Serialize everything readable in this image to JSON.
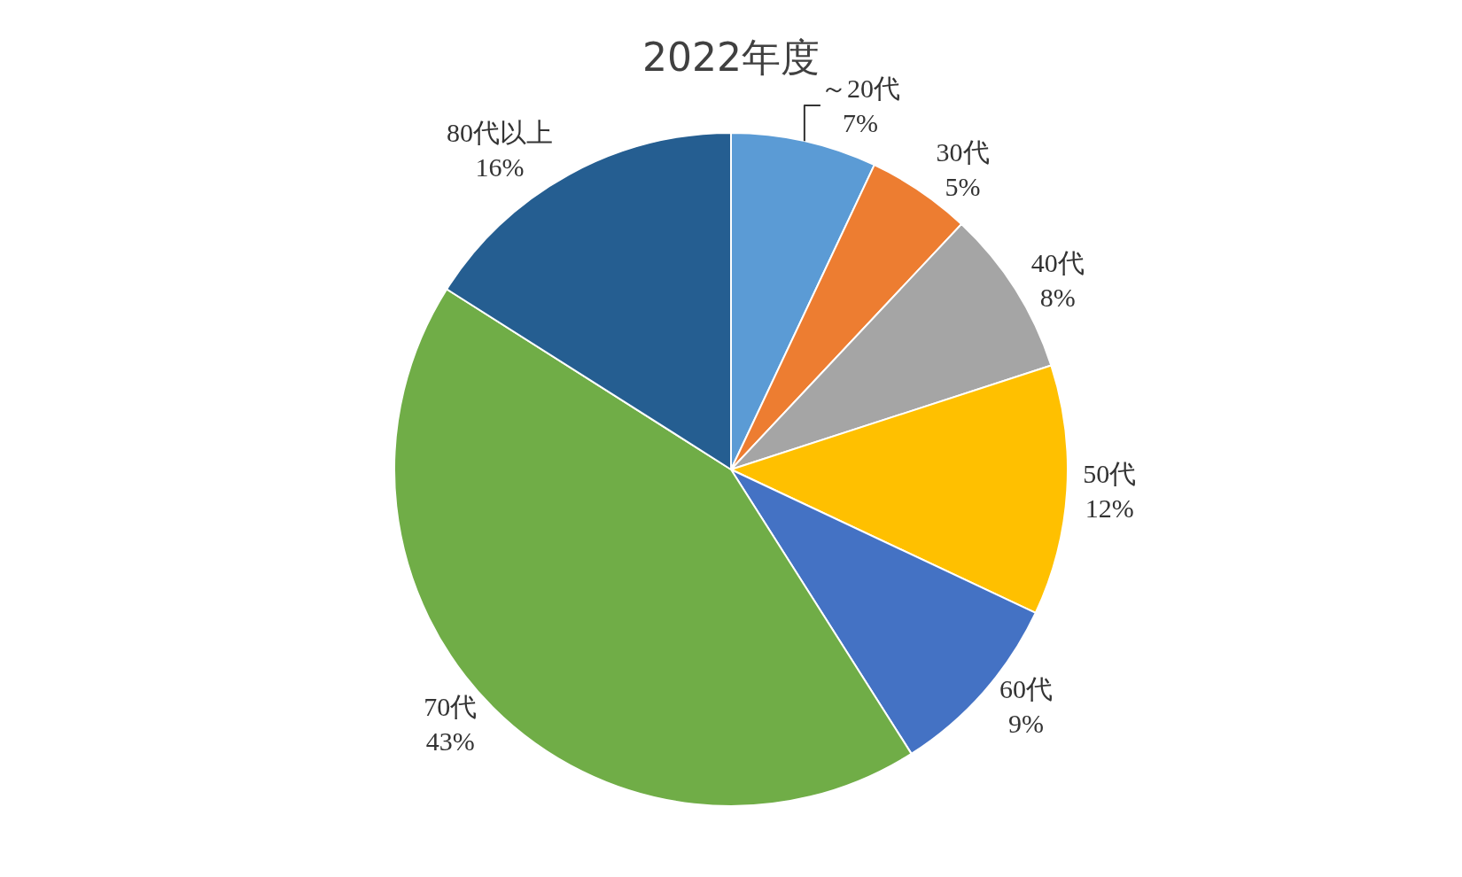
{
  "chart_data": {
    "type": "pie",
    "title": "2022年度",
    "categories": [
      "～20代",
      "30代",
      "40代",
      "50代",
      "60代",
      "70代",
      "80代以上"
    ],
    "values": [
      7,
      5,
      8,
      12,
      9,
      43,
      16
    ],
    "value_labels": [
      "7%",
      "5%",
      "8%",
      "12%",
      "9%",
      "43%",
      "16%"
    ],
    "colors": [
      "#5b9bd5",
      "#ed7d31",
      "#a5a5a5",
      "#ffc000",
      "#4472c4",
      "#70ad47",
      "#255e91"
    ],
    "legend": false
  }
}
